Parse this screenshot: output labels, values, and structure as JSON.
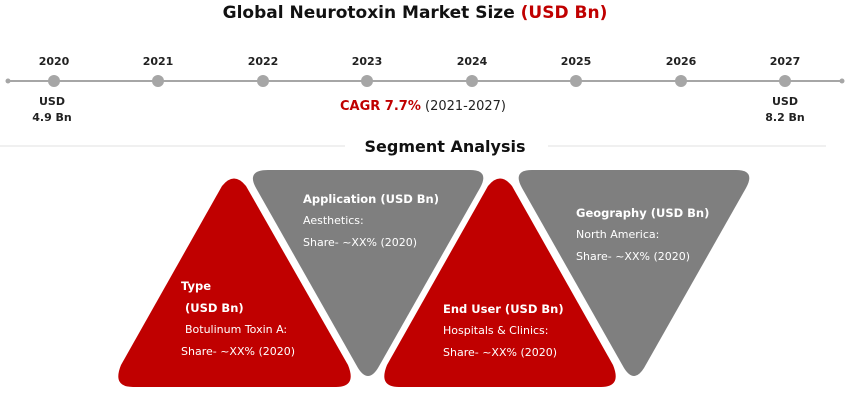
{
  "title": {
    "main": "Global Neurotoxin Market Size",
    "accent": "(USD Bn)"
  },
  "timeline": {
    "years": [
      "2020",
      "2021",
      "2022",
      "2023",
      "2024",
      "2025",
      "2026",
      "2027"
    ],
    "start": {
      "line1": "USD",
      "line2": "4.9 Bn"
    },
    "end": {
      "line1": "USD",
      "line2": "8.2 Bn"
    },
    "cagr": {
      "label": "CAGR 7.7%",
      "period": "(2021-2027)"
    }
  },
  "segment_title": "Segment Analysis",
  "segments": {
    "type": {
      "heading": "Type",
      "unit": "(USD Bn)",
      "item": "Botulinum Toxin A:",
      "share": "Share- ~XX% (2020)"
    },
    "application": {
      "heading": "Application (USD Bn)",
      "item": "Aesthetics:",
      "share": "Share- ~XX% (2020)"
    },
    "end_user": {
      "heading": "End User (USD Bn)",
      "item": "Hospitals & Clinics:",
      "share": "Share- ~XX% (2020)"
    },
    "geography": {
      "heading": "Geography (USD Bn)",
      "item": "North America:",
      "share": "Share- ~XX% (2020)"
    }
  },
  "colors": {
    "red": "#c00000",
    "gray": "#7f7f7f",
    "timeline": "#a6a6a6"
  }
}
